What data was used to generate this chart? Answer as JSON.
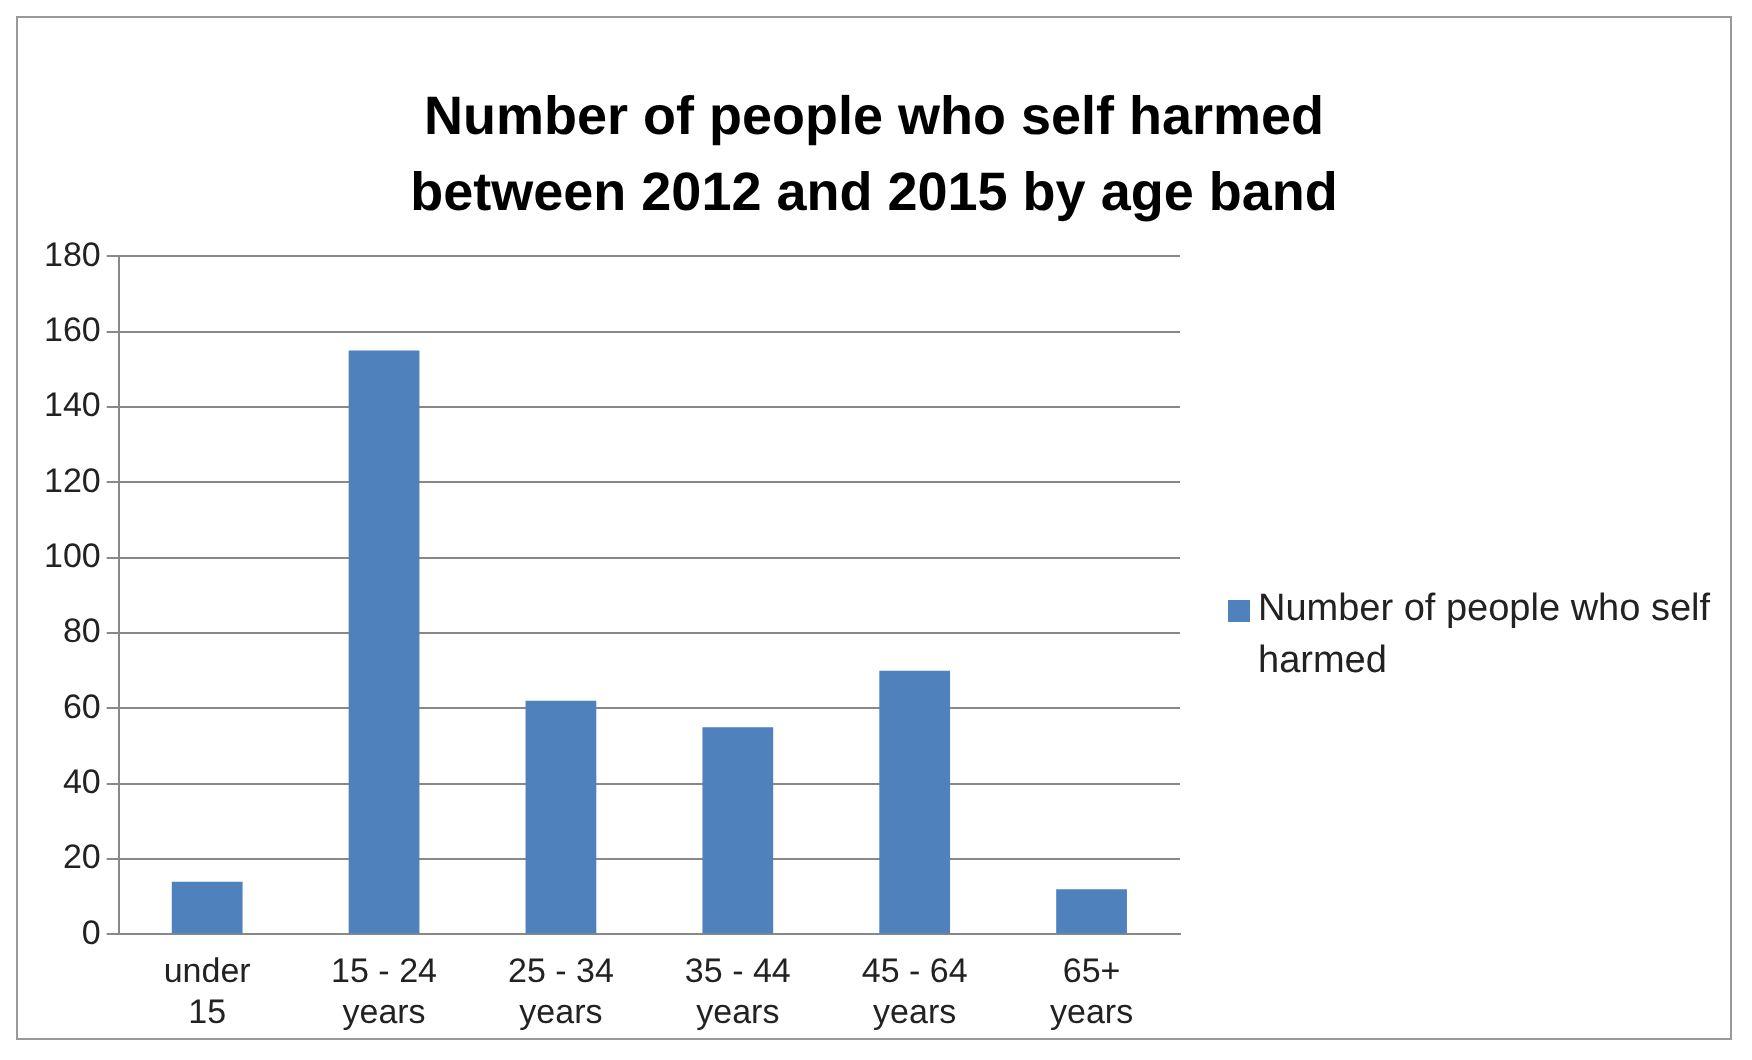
{
  "chart_data": {
    "type": "bar",
    "title": "Number of people who self harmed between 2012 and 2015 by age band",
    "categories": [
      "under 15",
      "15 - 24 years",
      "25 - 34 years",
      "35 - 44 years",
      "45 - 64 years",
      "65+ years"
    ],
    "series": [
      {
        "name": "Number of people who self harmed",
        "color": "#4f81bd",
        "values": [
          14,
          155,
          62,
          55,
          70,
          12
        ]
      }
    ],
    "ylim": [
      0,
      180
    ],
    "yticks": [
      0,
      20,
      40,
      60,
      80,
      100,
      120,
      140,
      160,
      180
    ],
    "grid": "y",
    "legend": "right"
  }
}
